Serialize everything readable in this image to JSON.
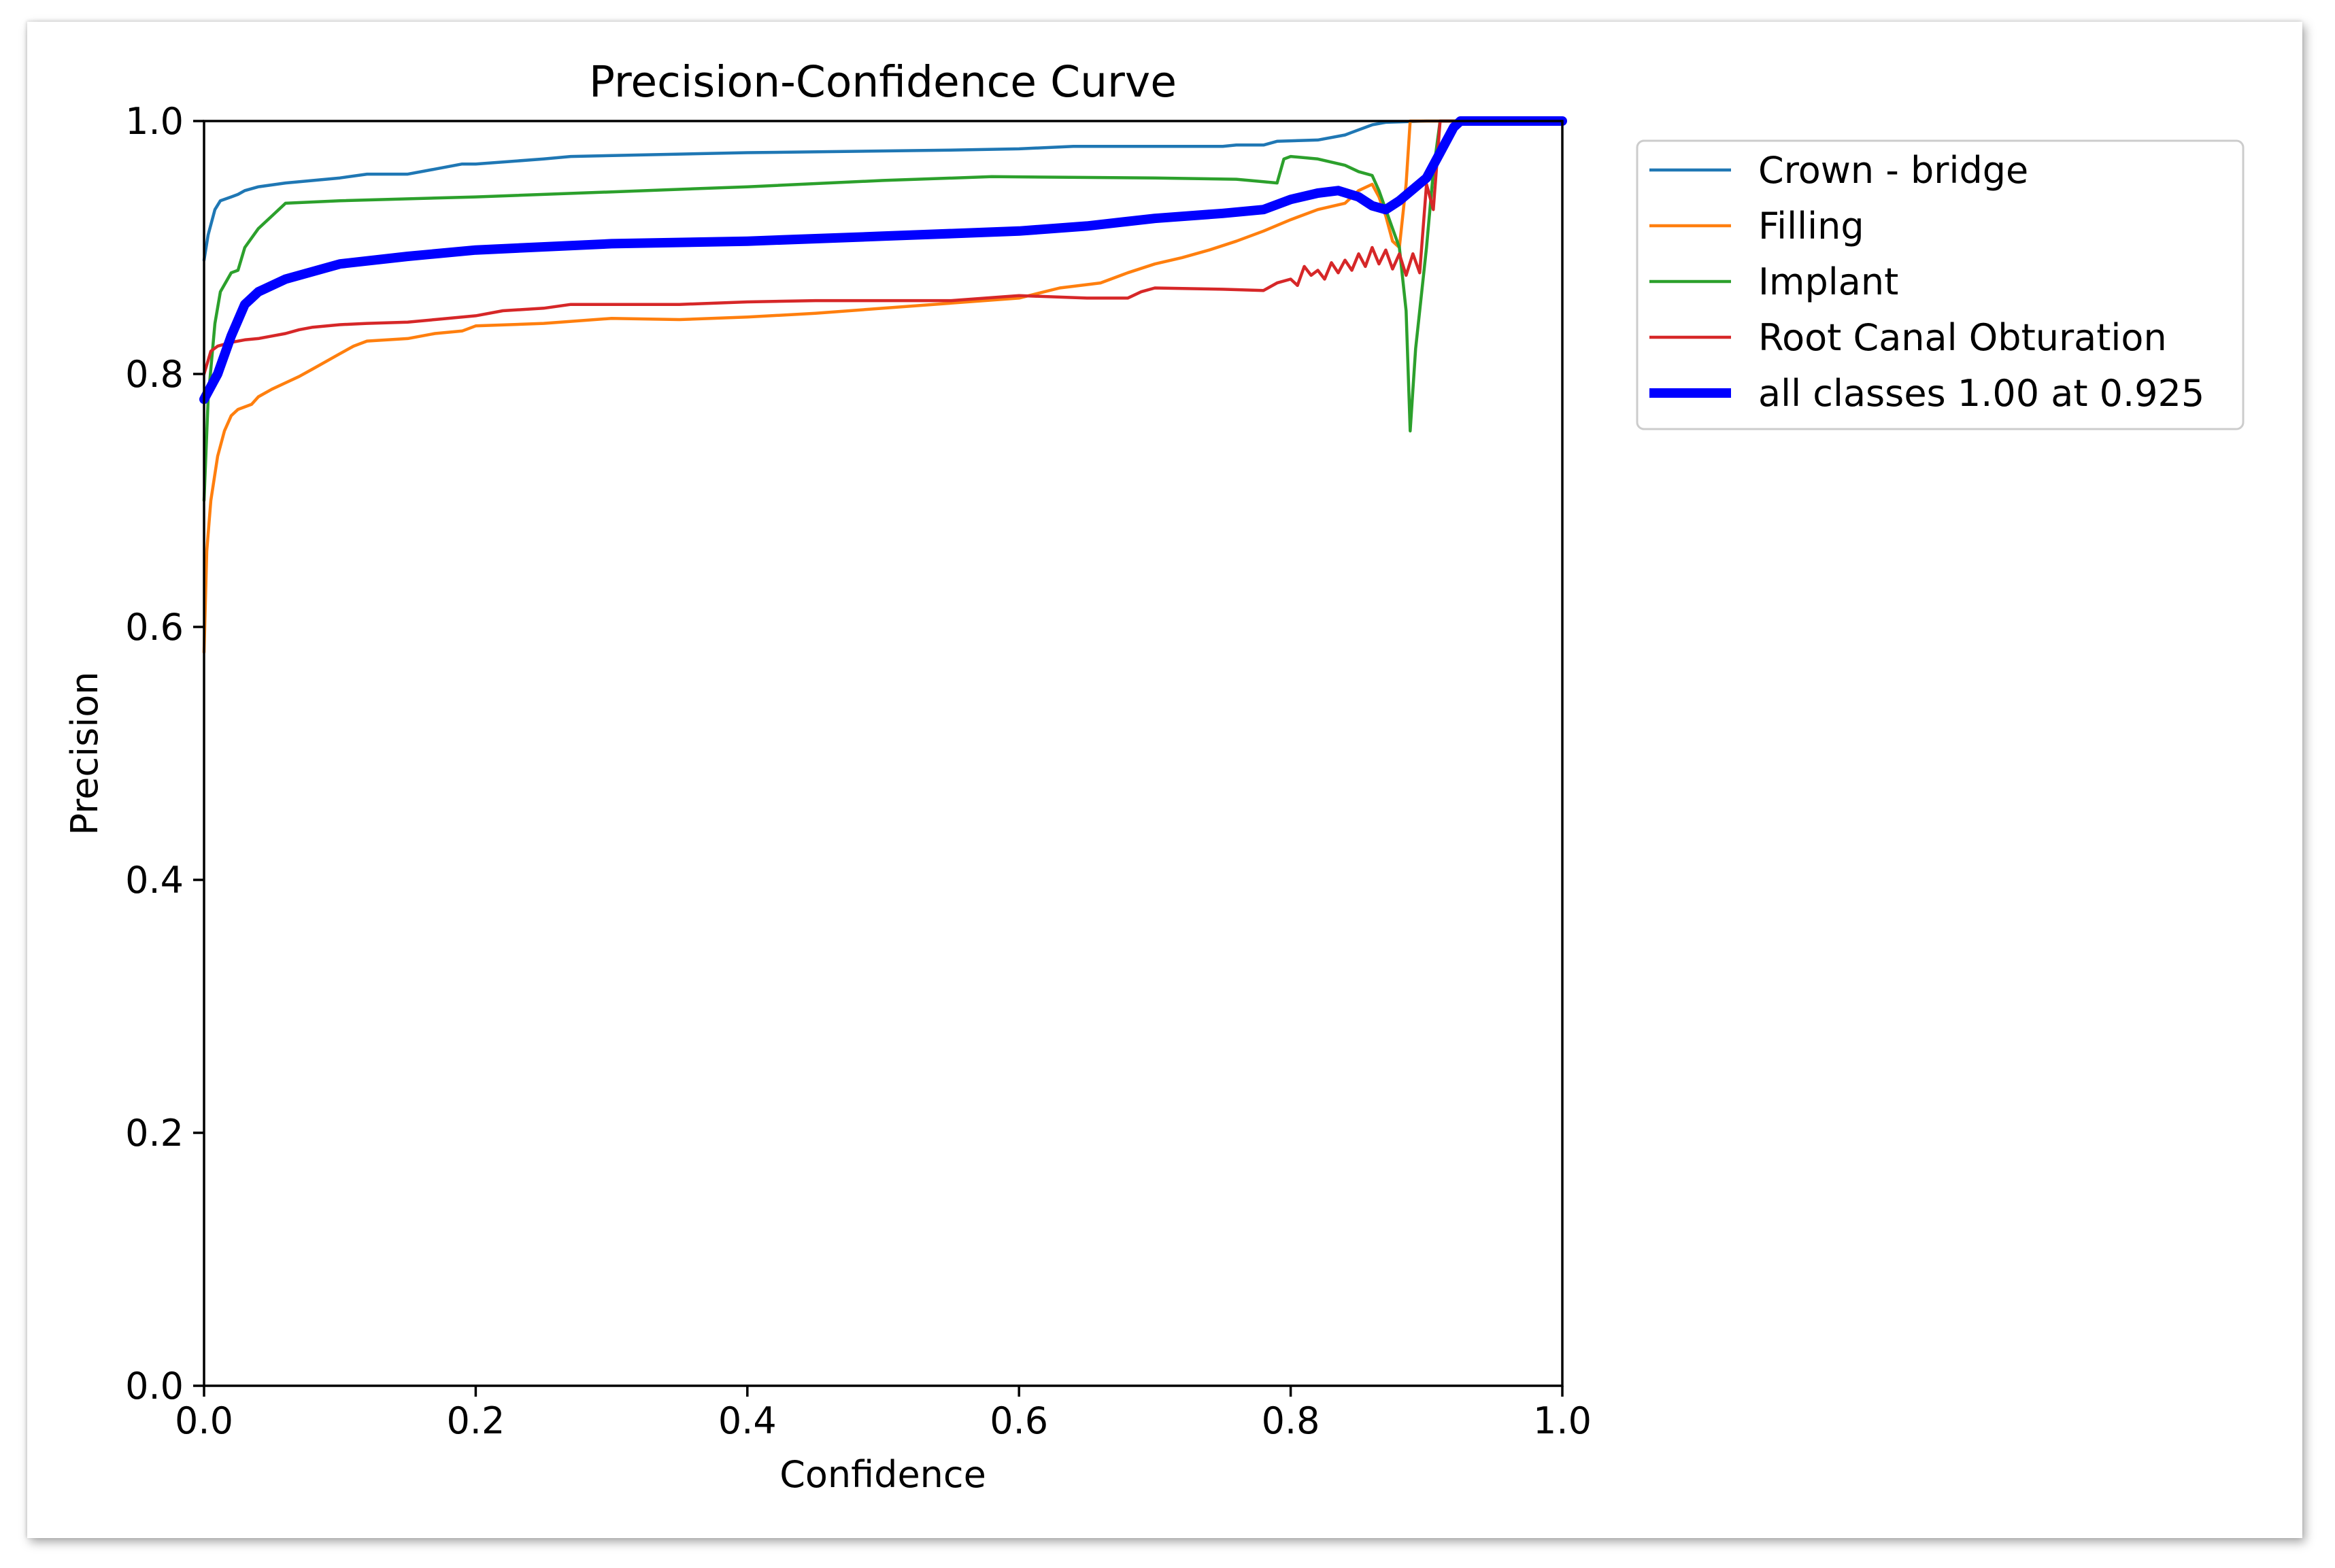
{
  "chart_data": {
    "type": "line",
    "title": "Precision-Confidence Curve",
    "xlabel": "Confidence",
    "ylabel": "Precision",
    "xlim": [
      0.0,
      1.0
    ],
    "ylim": [
      0.0,
      1.0
    ],
    "xticks": [
      "0.0",
      "0.2",
      "0.4",
      "0.6",
      "0.8",
      "1.0"
    ],
    "yticks": [
      "0.0",
      "0.2",
      "0.4",
      "0.6",
      "0.8",
      "1.0"
    ],
    "grid": false,
    "legend_position": "outside-top-right",
    "series": [
      {
        "name": "Crown - bridge",
        "color": "#1f77b4",
        "width": "thin",
        "points": [
          [
            0.0,
            0.89
          ],
          [
            0.003,
            0.91
          ],
          [
            0.008,
            0.93
          ],
          [
            0.012,
            0.937
          ],
          [
            0.02,
            0.94
          ],
          [
            0.025,
            0.942
          ],
          [
            0.03,
            0.945
          ],
          [
            0.04,
            0.948
          ],
          [
            0.06,
            0.951
          ],
          [
            0.1,
            0.955
          ],
          [
            0.12,
            0.958
          ],
          [
            0.15,
            0.958
          ],
          [
            0.17,
            0.962
          ],
          [
            0.19,
            0.966
          ],
          [
            0.2,
            0.966
          ],
          [
            0.25,
            0.97
          ],
          [
            0.27,
            0.972
          ],
          [
            0.4,
            0.975
          ],
          [
            0.55,
            0.977
          ],
          [
            0.6,
            0.978
          ],
          [
            0.64,
            0.98
          ],
          [
            0.75,
            0.98
          ],
          [
            0.76,
            0.981
          ],
          [
            0.78,
            0.981
          ],
          [
            0.79,
            0.984
          ],
          [
            0.82,
            0.985
          ],
          [
            0.84,
            0.989
          ],
          [
            0.845,
            0.991
          ],
          [
            0.86,
            0.997
          ],
          [
            0.87,
            0.999
          ],
          [
            0.9,
            1.0
          ],
          [
            1.0,
            1.0
          ]
        ]
      },
      {
        "name": "Filling",
        "color": "#ff7f0e",
        "width": "thin",
        "points": [
          [
            0.0,
            0.58
          ],
          [
            0.002,
            0.66
          ],
          [
            0.005,
            0.7
          ],
          [
            0.01,
            0.735
          ],
          [
            0.015,
            0.755
          ],
          [
            0.02,
            0.767
          ],
          [
            0.025,
            0.772
          ],
          [
            0.035,
            0.776
          ],
          [
            0.04,
            0.782
          ],
          [
            0.05,
            0.788
          ],
          [
            0.06,
            0.793
          ],
          [
            0.07,
            0.798
          ],
          [
            0.08,
            0.804
          ],
          [
            0.09,
            0.81
          ],
          [
            0.1,
            0.816
          ],
          [
            0.11,
            0.822
          ],
          [
            0.12,
            0.826
          ],
          [
            0.15,
            0.828
          ],
          [
            0.17,
            0.832
          ],
          [
            0.19,
            0.834
          ],
          [
            0.2,
            0.838
          ],
          [
            0.25,
            0.84
          ],
          [
            0.3,
            0.844
          ],
          [
            0.35,
            0.843
          ],
          [
            0.4,
            0.845
          ],
          [
            0.45,
            0.848
          ],
          [
            0.5,
            0.852
          ],
          [
            0.55,
            0.856
          ],
          [
            0.6,
            0.86
          ],
          [
            0.63,
            0.868
          ],
          [
            0.66,
            0.872
          ],
          [
            0.68,
            0.88
          ],
          [
            0.7,
            0.887
          ],
          [
            0.72,
            0.892
          ],
          [
            0.74,
            0.898
          ],
          [
            0.76,
            0.905
          ],
          [
            0.78,
            0.913
          ],
          [
            0.8,
            0.922
          ],
          [
            0.82,
            0.93
          ],
          [
            0.84,
            0.935
          ],
          [
            0.85,
            0.945
          ],
          [
            0.86,
            0.95
          ],
          [
            0.865,
            0.94
          ],
          [
            0.87,
            0.925
          ],
          [
            0.875,
            0.905
          ],
          [
            0.88,
            0.9
          ],
          [
            0.885,
            0.95
          ],
          [
            0.888,
            1.0
          ],
          [
            1.0,
            1.0
          ]
        ]
      },
      {
        "name": "Implant",
        "color": "#2ca02c",
        "width": "thin",
        "points": [
          [
            0.0,
            0.7
          ],
          [
            0.003,
            0.78
          ],
          [
            0.008,
            0.84
          ],
          [
            0.012,
            0.865
          ],
          [
            0.02,
            0.88
          ],
          [
            0.025,
            0.882
          ],
          [
            0.03,
            0.9
          ],
          [
            0.04,
            0.915
          ],
          [
            0.05,
            0.925
          ],
          [
            0.06,
            0.935
          ],
          [
            0.1,
            0.937
          ],
          [
            0.2,
            0.94
          ],
          [
            0.3,
            0.944
          ],
          [
            0.4,
            0.948
          ],
          [
            0.5,
            0.953
          ],
          [
            0.58,
            0.956
          ],
          [
            0.7,
            0.955
          ],
          [
            0.76,
            0.954
          ],
          [
            0.78,
            0.952
          ],
          [
            0.79,
            0.951
          ],
          [
            0.795,
            0.97
          ],
          [
            0.8,
            0.972
          ],
          [
            0.82,
            0.97
          ],
          [
            0.84,
            0.965
          ],
          [
            0.85,
            0.96
          ],
          [
            0.86,
            0.957
          ],
          [
            0.865,
            0.945
          ],
          [
            0.87,
            0.93
          ],
          [
            0.875,
            0.915
          ],
          [
            0.88,
            0.9
          ],
          [
            0.885,
            0.85
          ],
          [
            0.888,
            0.755
          ],
          [
            0.892,
            0.82
          ],
          [
            0.9,
            0.9
          ],
          [
            0.905,
            0.96
          ],
          [
            0.91,
            1.0
          ],
          [
            1.0,
            1.0
          ]
        ]
      },
      {
        "name": "Root Canal Obturation",
        "color": "#d62728",
        "width": "thin",
        "points": [
          [
            0.0,
            0.8
          ],
          [
            0.005,
            0.818
          ],
          [
            0.01,
            0.822
          ],
          [
            0.02,
            0.825
          ],
          [
            0.03,
            0.827
          ],
          [
            0.04,
            0.828
          ],
          [
            0.05,
            0.83
          ],
          [
            0.06,
            0.832
          ],
          [
            0.07,
            0.835
          ],
          [
            0.08,
            0.837
          ],
          [
            0.1,
            0.839
          ],
          [
            0.12,
            0.84
          ],
          [
            0.15,
            0.841
          ],
          [
            0.17,
            0.843
          ],
          [
            0.2,
            0.846
          ],
          [
            0.22,
            0.85
          ],
          [
            0.25,
            0.852
          ],
          [
            0.27,
            0.855
          ],
          [
            0.3,
            0.855
          ],
          [
            0.35,
            0.855
          ],
          [
            0.4,
            0.857
          ],
          [
            0.45,
            0.858
          ],
          [
            0.5,
            0.858
          ],
          [
            0.55,
            0.858
          ],
          [
            0.6,
            0.862
          ],
          [
            0.65,
            0.86
          ],
          [
            0.68,
            0.86
          ],
          [
            0.69,
            0.865
          ],
          [
            0.7,
            0.868
          ],
          [
            0.75,
            0.867
          ],
          [
            0.78,
            0.866
          ],
          [
            0.79,
            0.872
          ],
          [
            0.8,
            0.875
          ],
          [
            0.805,
            0.87
          ],
          [
            0.81,
            0.885
          ],
          [
            0.815,
            0.878
          ],
          [
            0.82,
            0.882
          ],
          [
            0.825,
            0.875
          ],
          [
            0.83,
            0.888
          ],
          [
            0.835,
            0.88
          ],
          [
            0.84,
            0.89
          ],
          [
            0.845,
            0.882
          ],
          [
            0.85,
            0.895
          ],
          [
            0.855,
            0.885
          ],
          [
            0.86,
            0.9
          ],
          [
            0.865,
            0.887
          ],
          [
            0.87,
            0.898
          ],
          [
            0.875,
            0.883
          ],
          [
            0.88,
            0.895
          ],
          [
            0.885,
            0.878
          ],
          [
            0.89,
            0.895
          ],
          [
            0.895,
            0.88
          ],
          [
            0.9,
            0.95
          ],
          [
            0.905,
            0.93
          ],
          [
            0.91,
            1.0
          ],
          [
            1.0,
            1.0
          ]
        ]
      },
      {
        "name": "all classes 1.00 at 0.925",
        "color": "#0000ff",
        "width": "thick",
        "points": [
          [
            0.0,
            0.78
          ],
          [
            0.01,
            0.8
          ],
          [
            0.02,
            0.83
          ],
          [
            0.03,
            0.855
          ],
          [
            0.04,
            0.865
          ],
          [
            0.06,
            0.875
          ],
          [
            0.1,
            0.887
          ],
          [
            0.15,
            0.893
          ],
          [
            0.2,
            0.898
          ],
          [
            0.3,
            0.903
          ],
          [
            0.4,
            0.905
          ],
          [
            0.5,
            0.909
          ],
          [
            0.6,
            0.913
          ],
          [
            0.65,
            0.917
          ],
          [
            0.7,
            0.923
          ],
          [
            0.75,
            0.927
          ],
          [
            0.78,
            0.93
          ],
          [
            0.8,
            0.938
          ],
          [
            0.82,
            0.943
          ],
          [
            0.835,
            0.945
          ],
          [
            0.85,
            0.94
          ],
          [
            0.86,
            0.933
          ],
          [
            0.87,
            0.93
          ],
          [
            0.88,
            0.937
          ],
          [
            0.9,
            0.955
          ],
          [
            0.91,
            0.975
          ],
          [
            0.92,
            0.995
          ],
          [
            0.925,
            1.0
          ],
          [
            1.0,
            1.0
          ]
        ]
      }
    ]
  }
}
